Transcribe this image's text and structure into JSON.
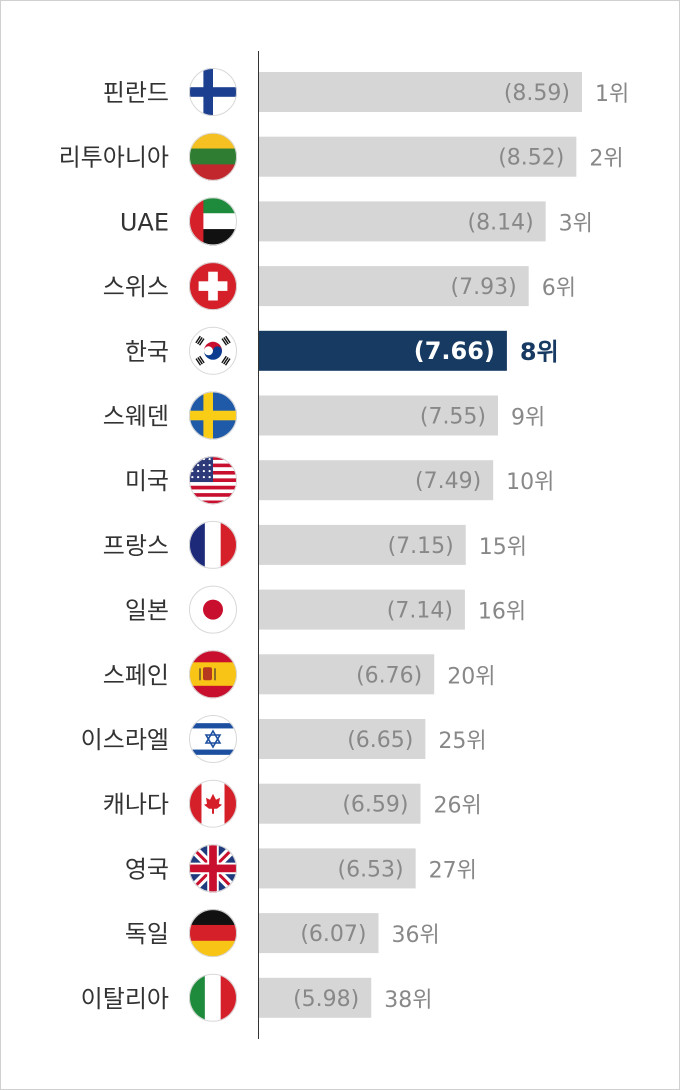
{
  "chart_data": {
    "type": "bar",
    "orientation": "horizontal",
    "highlight_color": "#173a63",
    "bar_color": "#d6d6d6",
    "categories": [
      "핀란드",
      "리투아니아",
      "UAE",
      "스위스",
      "한국",
      "스웨덴",
      "미국",
      "프랑스",
      "일본",
      "스페인",
      "이스라엘",
      "캐나다",
      "영국",
      "독일",
      "이탈리아"
    ],
    "values": [
      8.59,
      8.52,
      8.14,
      7.93,
      7.66,
      7.55,
      7.49,
      7.15,
      7.14,
      6.76,
      6.65,
      6.59,
      6.53,
      6.07,
      5.98
    ],
    "value_labels": [
      "(8.59)",
      "(8.52)",
      "(8.14)",
      "(7.93)",
      "(7.66)",
      "(7.55)",
      "(7.49)",
      "(7.15)",
      "(7.14)",
      "(6.76)",
      "(6.65)",
      "(6.59)",
      "(6.53)",
      "(6.07)",
      "(5.98)"
    ],
    "ranks": [
      "1위",
      "2위",
      "3위",
      "6위",
      "8위",
      "9위",
      "10위",
      "15위",
      "16위",
      "20위",
      "25위",
      "26위",
      "27위",
      "36위",
      "38위"
    ],
    "highlight_index": 4,
    "flag_icons": [
      "finland-flag-icon",
      "lithuania-flag-icon",
      "uae-flag-icon",
      "switzerland-flag-icon",
      "korea-flag-icon",
      "sweden-flag-icon",
      "usa-flag-icon",
      "france-flag-icon",
      "japan-flag-icon",
      "spain-flag-icon",
      "israel-flag-icon",
      "canada-flag-icon",
      "uk-flag-icon",
      "germany-flag-icon",
      "italy-flag-icon"
    ]
  }
}
